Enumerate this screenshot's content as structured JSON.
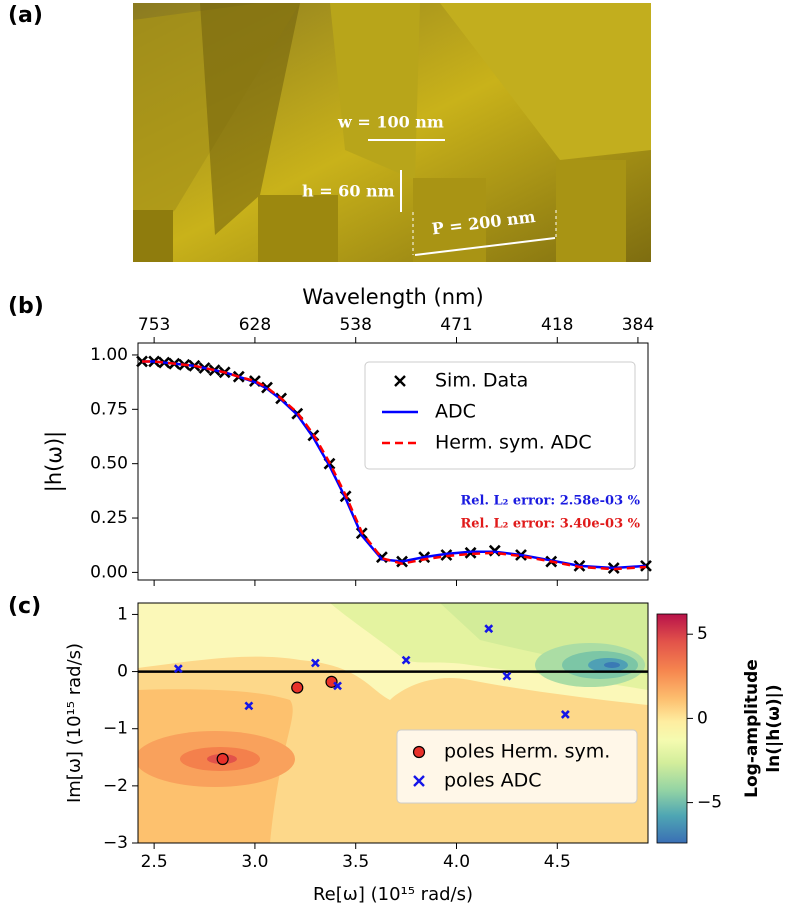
{
  "figure_a": {
    "label": "(a)",
    "annotations": [
      "w = 100 nm",
      "h = 60 nm",
      "P = 200 nm"
    ]
  },
  "chart_data": [
    {
      "type": "line",
      "panel_label": "(b)",
      "x2label": "Wavelength (nm)",
      "ylabel": "|h(ω)|",
      "xlim": [
        2.42,
        4.95
      ],
      "ylim": [
        -0.035,
        1.055
      ],
      "xticks": [
        2.5,
        3,
        3.5,
        4,
        4.5
      ],
      "show_xtick_labels": false,
      "x2ticks": [
        {
          "value": 2.5,
          "label": "753"
        },
        {
          "value": 3,
          "label": "628"
        },
        {
          "value": 3.5,
          "label": "538"
        },
        {
          "value": 4,
          "label": "471"
        },
        {
          "value": 4.5,
          "label": "418"
        },
        {
          "value": 4.9,
          "label": "384"
        }
      ],
      "yticks": [
        {
          "value": 0,
          "label": "0.00"
        },
        {
          "value": 0.25,
          "label": "0.25"
        },
        {
          "value": 0.5,
          "label": "0.50"
        },
        {
          "value": 0.75,
          "label": "0.75"
        },
        {
          "value": 1,
          "label": "1.00"
        }
      ],
      "legend": "upper right",
      "x": [
        2.44,
        2.5,
        2.55,
        2.6,
        2.65,
        2.7,
        2.75,
        2.8,
        2.85,
        2.92,
        3.0,
        3.06,
        3.13,
        3.21,
        3.29,
        3.37,
        3.45,
        3.53,
        3.63,
        3.73,
        3.84,
        3.95,
        4.07,
        4.19,
        4.32,
        4.47,
        4.61,
        4.78,
        4.94
      ],
      "series": [
        {
          "name": "Sim. Data",
          "color": "#000000",
          "marker": "x",
          "values": [
            0.97,
            0.97,
            0.965,
            0.96,
            0.955,
            0.95,
            0.94,
            0.93,
            0.92,
            0.9,
            0.88,
            0.85,
            0.8,
            0.73,
            0.63,
            0.5,
            0.35,
            0.18,
            0.07,
            0.05,
            0.07,
            0.08,
            0.09,
            0.1,
            0.08,
            0.05,
            0.03,
            0.02,
            0.03
          ]
        },
        {
          "name": "ADC",
          "color": "#0000ff",
          "marker": "line",
          "values": [
            0.97,
            0.97,
            0.965,
            0.96,
            0.955,
            0.95,
            0.94,
            0.93,
            0.92,
            0.9,
            0.875,
            0.845,
            0.795,
            0.725,
            0.62,
            0.49,
            0.34,
            0.17,
            0.06,
            0.05,
            0.07,
            0.085,
            0.095,
            0.095,
            0.08,
            0.055,
            0.03,
            0.02,
            0.03
          ]
        },
        {
          "name": "Herm. sym. ADC",
          "color": "#ff0000",
          "marker": "dashed",
          "values": [
            0.97,
            0.97,
            0.965,
            0.96,
            0.955,
            0.95,
            0.94,
            0.93,
            0.92,
            0.9,
            0.88,
            0.85,
            0.8,
            0.735,
            0.635,
            0.505,
            0.355,
            0.185,
            0.065,
            0.04,
            0.06,
            0.075,
            0.085,
            0.09,
            0.075,
            0.05,
            0.025,
            0.015,
            0.025
          ]
        }
      ],
      "annotations": [
        {
          "text": "Rel. L₂ error: 2.58e-03 %",
          "color": "#1a1ae0"
        },
        {
          "text": "Rel. L₂ error: 3.40e-03 %",
          "color": "#e01a1a"
        }
      ]
    },
    {
      "type": "contour",
      "panel_label": "(c)",
      "xlabel": "Re[ω] (10¹⁵ rad/s)",
      "ylabel": "Im[ω] (10¹⁵ rad/s)",
      "xlim": [
        2.42,
        4.95
      ],
      "ylim": [
        -3,
        1.2
      ],
      "xticks": [
        2.5,
        {
          "value": 3,
          "label": "3.0"
        },
        3.5,
        {
          "value": 4,
          "label": "4.0"
        },
        4.5
      ],
      "yticks": [
        {
          "value": -3,
          "label": "−3"
        },
        {
          "value": -2,
          "label": "−2"
        },
        {
          "value": -1,
          "label": "−1"
        },
        0,
        1
      ],
      "hline": 0,
      "legend": "lower right",
      "series": [
        {
          "name": "poles Herm. sym.",
          "color": "#e8312a",
          "marker": "circle",
          "x": [
            2.84,
            3.21,
            3.38
          ],
          "values": [
            -1.53,
            -0.28,
            -0.18
          ]
        },
        {
          "name": "poles ADC",
          "color": "#1515e8",
          "marker": "x",
          "x": [
            2.62,
            2.97,
            3.3,
            3.41,
            3.75,
            4.16,
            4.25,
            4.54
          ],
          "values": [
            0.05,
            -0.6,
            0.15,
            -0.25,
            0.2,
            0.75,
            -0.08,
            -0.75
          ]
        }
      ],
      "colorbar": {
        "label": [
          "Log-amplitude",
          "ln(|h(ω)|)"
        ],
        "lim": [
          -7.4,
          6.2
        ],
        "ticks": [
          {
            "value": -5,
            "label": "−5"
          },
          0,
          5
        ]
      }
    }
  ]
}
